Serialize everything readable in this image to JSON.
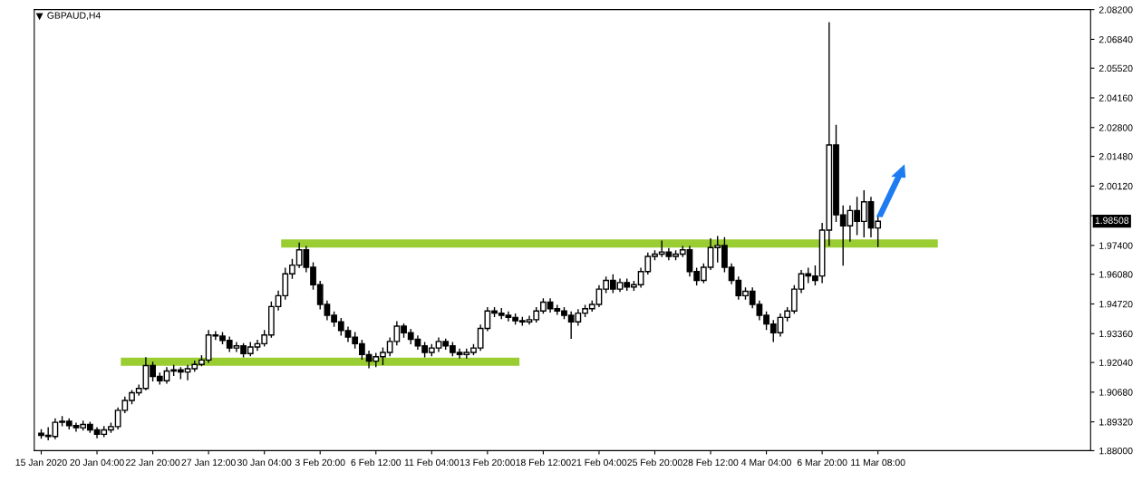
{
  "chart_data": {
    "type": "candlestick",
    "title": "GBPAUD,H4",
    "categories": [
      "15 Jan 2020",
      null,
      null,
      null,
      null,
      null,
      null,
      null,
      "20 Jan 04:00",
      null,
      null,
      null,
      null,
      null,
      null,
      null,
      "22 Jan 20:00",
      null,
      null,
      null,
      null,
      null,
      null,
      null,
      "27 Jan 12:00",
      null,
      null,
      null,
      null,
      null,
      null,
      null,
      "30 Jan 04:00",
      null,
      null,
      null,
      null,
      null,
      null,
      null,
      "3 Feb 20:00",
      null,
      null,
      null,
      null,
      null,
      null,
      null,
      "6 Feb 12:00",
      null,
      null,
      null,
      null,
      null,
      null,
      null,
      "11 Feb 04:00",
      null,
      null,
      null,
      null,
      null,
      null,
      null,
      "13 Feb 20:00",
      null,
      null,
      null,
      null,
      null,
      null,
      null,
      "18 Feb 12:00",
      null,
      null,
      null,
      null,
      null,
      null,
      null,
      "21 Feb 04:00",
      null,
      null,
      null,
      null,
      null,
      null,
      null,
      "25 Feb 20:00",
      null,
      null,
      null,
      null,
      null,
      null,
      null,
      "28 Feb 12:00",
      null,
      null,
      null,
      null,
      null,
      null,
      null,
      "4 Mar 04:00",
      null,
      null,
      null,
      null,
      null,
      null,
      null,
      "6 Mar 20:00",
      null,
      null,
      null,
      null,
      null,
      null,
      null,
      "11 Mar 08:00",
      null,
      null,
      null,
      null,
      null,
      null,
      null,
      null,
      null,
      null,
      null,
      null,
      null,
      null,
      null,
      null,
      null,
      null,
      null,
      null,
      null,
      null,
      null,
      null,
      null,
      null,
      null,
      null,
      null,
      null
    ],
    "ohlc": [
      [
        1.888,
        1.8895,
        1.8858,
        1.887
      ],
      [
        1.887,
        1.8905,
        1.885,
        1.8865
      ],
      [
        1.8865,
        1.8945,
        1.8855,
        1.893
      ],
      [
        1.893,
        1.8955,
        1.8915,
        1.8935
      ],
      [
        1.8935,
        1.8945,
        1.89,
        1.8915
      ],
      [
        1.8915,
        1.8925,
        1.889,
        1.8905
      ],
      [
        1.8905,
        1.8935,
        1.8895,
        1.892
      ],
      [
        1.892,
        1.893,
        1.8885,
        1.8895
      ],
      [
        1.8895,
        1.8905,
        1.886,
        1.8875
      ],
      [
        1.8875,
        1.891,
        1.8865,
        1.8895
      ],
      [
        1.8895,
        1.8925,
        1.8885,
        1.891
      ],
      [
        1.891,
        1.8995,
        1.89,
        1.8985
      ],
      [
        1.8985,
        1.9045,
        1.8975,
        1.903
      ],
      [
        1.903,
        1.9075,
        1.9015,
        1.9065
      ],
      [
        1.9065,
        1.91,
        1.9055,
        1.9085
      ],
      [
        1.9085,
        1.9225,
        1.908,
        1.919
      ],
      [
        1.919,
        1.9205,
        1.912,
        1.914
      ],
      [
        1.914,
        1.9155,
        1.9105,
        1.912
      ],
      [
        1.912,
        1.918,
        1.911,
        1.9165
      ],
      [
        1.9165,
        1.919,
        1.9145,
        1.917
      ],
      [
        1.917,
        1.918,
        1.913,
        1.916
      ],
      [
        1.916,
        1.919,
        1.9125,
        1.9175
      ],
      [
        1.9175,
        1.921,
        1.9165,
        1.9195
      ],
      [
        1.9195,
        1.9235,
        1.919,
        1.9215
      ],
      [
        1.9215,
        1.935,
        1.9205,
        1.933
      ],
      [
        1.933,
        1.9345,
        1.931,
        1.9325
      ],
      [
        1.9325,
        1.934,
        1.929,
        1.9305
      ],
      [
        1.9305,
        1.932,
        1.9255,
        1.927
      ],
      [
        1.927,
        1.9295,
        1.9255,
        1.928
      ],
      [
        1.928,
        1.929,
        1.923,
        1.9245
      ],
      [
        1.9245,
        1.9295,
        1.9235,
        1.9275
      ],
      [
        1.9275,
        1.9305,
        1.926,
        1.929
      ],
      [
        1.929,
        1.935,
        1.928,
        1.933
      ],
      [
        1.933,
        1.948,
        1.932,
        1.946
      ],
      [
        1.946,
        1.953,
        1.9445,
        1.951
      ],
      [
        1.951,
        1.9635,
        1.9495,
        1.961
      ],
      [
        1.961,
        1.9675,
        1.959,
        1.965
      ],
      [
        1.965,
        1.975,
        1.964,
        1.972
      ],
      [
        1.972,
        1.9735,
        1.962,
        1.964
      ],
      [
        1.964,
        1.966,
        1.954,
        1.956
      ],
      [
        1.956,
        1.9575,
        1.945,
        1.947
      ],
      [
        1.947,
        1.9485,
        1.94,
        1.942
      ],
      [
        1.942,
        1.9435,
        1.937,
        1.939
      ],
      [
        1.939,
        1.9405,
        1.933,
        1.935
      ],
      [
        1.935,
        1.9365,
        1.93,
        1.932
      ],
      [
        1.932,
        1.934,
        1.927,
        1.929
      ],
      [
        1.929,
        1.9305,
        1.922,
        1.924
      ],
      [
        1.924,
        1.9255,
        1.918,
        1.921
      ],
      [
        1.921,
        1.9245,
        1.9185,
        1.923
      ],
      [
        1.923,
        1.927,
        1.9195,
        1.925
      ],
      [
        1.925,
        1.9315,
        1.9235,
        1.93
      ],
      [
        1.93,
        1.939,
        1.9285,
        1.937
      ],
      [
        1.937,
        1.938,
        1.932,
        1.934
      ],
      [
        1.934,
        1.9355,
        1.929,
        1.931
      ],
      [
        1.931,
        1.9325,
        1.9265,
        1.928
      ],
      [
        1.928,
        1.9295,
        1.923,
        1.925
      ],
      [
        1.925,
        1.9285,
        1.9235,
        1.927
      ],
      [
        1.927,
        1.9315,
        1.9255,
        1.93
      ],
      [
        1.93,
        1.931,
        1.9265,
        1.928
      ],
      [
        1.928,
        1.9295,
        1.9235,
        1.925
      ],
      [
        1.925,
        1.9265,
        1.9225,
        1.924
      ],
      [
        1.924,
        1.9265,
        1.9225,
        1.925
      ],
      [
        1.925,
        1.9285,
        1.924,
        1.927
      ],
      [
        1.927,
        1.9375,
        1.926,
        1.936
      ],
      [
        1.936,
        1.9455,
        1.935,
        1.944
      ],
      [
        1.944,
        1.9455,
        1.9415,
        1.943
      ],
      [
        1.943,
        1.945,
        1.9405,
        1.942
      ],
      [
        1.942,
        1.9435,
        1.9395,
        1.941
      ],
      [
        1.941,
        1.9425,
        1.938,
        1.9395
      ],
      [
        1.9395,
        1.941,
        1.9375,
        1.939
      ],
      [
        1.939,
        1.9415,
        1.938,
        1.94
      ],
      [
        1.94,
        1.9455,
        1.939,
        1.944
      ],
      [
        1.944,
        1.9495,
        1.943,
        1.948
      ],
      [
        1.948,
        1.9495,
        1.9435,
        1.945
      ],
      [
        1.945,
        1.9465,
        1.9425,
        1.944
      ],
      [
        1.944,
        1.9455,
        1.9405,
        1.942
      ],
      [
        1.942,
        1.9435,
        1.9315,
        1.939
      ],
      [
        1.939,
        1.9445,
        1.9375,
        1.943
      ],
      [
        1.943,
        1.9465,
        1.9415,
        1.945
      ],
      [
        1.945,
        1.9485,
        1.944,
        1.947
      ],
      [
        1.947,
        1.9555,
        1.946,
        1.954
      ],
      [
        1.954,
        1.9595,
        1.9525,
        1.958
      ],
      [
        1.958,
        1.9605,
        1.9525,
        1.954
      ],
      [
        1.954,
        1.9585,
        1.953,
        1.957
      ],
      [
        1.957,
        1.9585,
        1.9535,
        1.955
      ],
      [
        1.955,
        1.9575,
        1.9535,
        1.956
      ],
      [
        1.956,
        1.9635,
        1.955,
        1.962
      ],
      [
        1.962,
        1.9705,
        1.961,
        1.969
      ],
      [
        1.969,
        1.9715,
        1.9675,
        1.97
      ],
      [
        1.97,
        1.976,
        1.969,
        1.971
      ],
      [
        1.971,
        1.9725,
        1.9675,
        1.969
      ],
      [
        1.969,
        1.9715,
        1.9675,
        1.97
      ],
      [
        1.97,
        1.9735,
        1.969,
        1.972
      ],
      [
        1.972,
        1.9735,
        1.96,
        1.962
      ],
      [
        1.962,
        1.9635,
        1.956,
        1.958
      ],
      [
        1.958,
        1.9655,
        1.957,
        1.964
      ],
      [
        1.964,
        1.977,
        1.963,
        1.973
      ],
      [
        1.973,
        1.978,
        1.9665,
        1.974
      ],
      [
        1.974,
        1.9775,
        1.962,
        1.964
      ],
      [
        1.964,
        1.9655,
        1.9565,
        1.958
      ],
      [
        1.958,
        1.9595,
        1.9495,
        1.951
      ],
      [
        1.951,
        1.9545,
        1.9495,
        1.953
      ],
      [
        1.953,
        1.9545,
        1.9455,
        1.947
      ],
      [
        1.947,
        1.9485,
        1.94,
        1.942
      ],
      [
        1.942,
        1.9435,
        1.9355,
        1.938
      ],
      [
        1.938,
        1.9395,
        1.93,
        1.934
      ],
      [
        1.934,
        1.9425,
        1.9325,
        1.941
      ],
      [
        1.941,
        1.9455,
        1.9395,
        1.944
      ],
      [
        1.944,
        1.9555,
        1.943,
        1.954
      ],
      [
        1.954,
        1.9625,
        1.9525,
        1.961
      ],
      [
        1.961,
        1.9635,
        1.957,
        1.96
      ],
      [
        1.96,
        1.9645,
        1.956,
        1.958
      ],
      [
        1.96,
        1.984,
        1.957,
        1.981
      ],
      [
        1.981,
        2.076,
        1.974,
        2.02
      ],
      [
        2.02,
        2.029,
        1.985,
        1.988
      ],
      [
        1.988,
        1.992,
        1.965,
        1.983
      ],
      [
        1.983,
        1.992,
        1.976,
        1.99
      ],
      [
        1.99,
        1.996,
        1.979,
        1.985
      ],
      [
        1.985,
        1.999,
        1.978,
        1.994
      ],
      [
        1.994,
        1.996,
        1.978,
        1.982
      ],
      [
        1.982,
        1.988,
        1.9735,
        1.98508
      ],
      null,
      null,
      null,
      null,
      null,
      null,
      null,
      null,
      null,
      null,
      null,
      null,
      null,
      null,
      null,
      null,
      null,
      null,
      null,
      null,
      null,
      null,
      null,
      null,
      null,
      null,
      null,
      null,
      null,
      null
    ],
    "series": [
      {
        "type": "line",
        "color": "#9acd32",
        "values": [
          null,
          null,
          null,
          null,
          null,
          null,
          null,
          null,
          null,
          null,
          null,
          null,
          1.9207,
          1.9207,
          1.9207,
          1.9207,
          1.9207,
          1.9207,
          1.9207,
          1.9207,
          1.9207,
          1.9207,
          1.9207,
          1.9207,
          1.9207,
          1.9207,
          1.9207,
          1.9207,
          1.9207,
          1.9207,
          1.9207,
          1.9207,
          1.9207,
          1.9207,
          1.9207,
          1.9207,
          1.9207,
          1.9207,
          1.9207,
          1.9207,
          1.9207,
          1.9207,
          1.9207,
          1.9207,
          1.9207,
          1.9207,
          1.9207,
          1.9207,
          1.9207,
          1.9207,
          1.9207,
          1.9207,
          1.9207,
          1.9207,
          1.9207,
          1.9207,
          1.9207,
          1.9207,
          1.9207,
          1.9207,
          1.9207,
          1.9207,
          1.9207,
          1.9207,
          1.9207,
          1.9207,
          1.9207,
          1.9207,
          1.9207,
          null,
          null,
          null,
          null,
          null,
          null,
          null,
          null,
          null,
          null,
          null,
          null,
          null,
          null,
          null,
          null,
          null,
          null,
          null,
          null,
          null,
          null,
          null,
          null,
          null,
          null,
          null,
          null,
          null,
          null,
          null,
          null,
          null,
          null,
          null,
          null,
          null,
          null,
          null,
          null,
          null,
          null,
          null,
          null,
          null,
          null,
          null,
          null,
          null,
          null,
          null,
          null,
          null,
          null,
          null,
          null,
          null,
          null,
          null,
          null,
          null,
          null,
          null,
          null,
          null,
          null,
          null,
          null,
          null,
          null,
          null,
          null,
          null,
          null,
          null,
          null,
          null,
          null,
          null,
          null,
          null,
          null
        ]
      },
      {
        "type": "line",
        "color": "#9acd32",
        "values": [
          null,
          null,
          null,
          null,
          null,
          null,
          null,
          null,
          null,
          null,
          null,
          null,
          null,
          null,
          null,
          null,
          null,
          null,
          null,
          null,
          null,
          null,
          null,
          null,
          null,
          null,
          null,
          null,
          null,
          null,
          null,
          null,
          null,
          null,
          null,
          1.9749,
          1.9749,
          1.9749,
          1.9749,
          1.9749,
          1.9749,
          1.9749,
          1.9749,
          1.9749,
          1.9749,
          1.9749,
          1.9749,
          1.9749,
          1.9749,
          1.9749,
          1.9749,
          1.9749,
          1.9749,
          1.9749,
          1.9749,
          1.9749,
          1.9749,
          1.9749,
          1.9749,
          1.9749,
          1.9749,
          1.9749,
          1.9749,
          1.9749,
          1.9749,
          1.9749,
          1.9749,
          1.9749,
          1.9749,
          1.9749,
          1.9749,
          1.9749,
          1.9749,
          1.9749,
          1.9749,
          1.9749,
          1.9749,
          1.9749,
          1.9749,
          1.9749,
          1.9749,
          1.9749,
          1.9749,
          1.9749,
          1.9749,
          1.9749,
          1.9749,
          1.9749,
          1.9749,
          1.9749,
          1.9749,
          1.9749,
          1.9749,
          1.9749,
          1.9749,
          1.9749,
          1.9749,
          1.9749,
          1.9749,
          1.9749,
          1.9749,
          1.9749,
          1.9749,
          1.9749,
          1.9749,
          1.9749,
          1.9749,
          1.9749,
          1.9749,
          1.9749,
          1.9749,
          1.9749,
          1.9749,
          1.9749,
          1.9749,
          1.9749,
          1.9749,
          1.9749,
          1.9749,
          1.9749,
          1.9749,
          1.9749,
          1.9749,
          1.9749,
          1.9749,
          1.9749,
          1.9749,
          1.9749,
          1.9749,
          null,
          null,
          null,
          null,
          null,
          null,
          null,
          null,
          null,
          null,
          null,
          null,
          null,
          null,
          null,
          null,
          null,
          null,
          null,
          null,
          null,
          null
        ]
      }
    ],
    "annotations": [
      "1.98508"
    ],
    "ylim": [
      1.88,
      2.082
    ],
    "yticks": [
      {
        "value": 1.88,
        "label": "1.88000"
      },
      {
        "value": 1.8932,
        "label": "1.89320"
      },
      {
        "value": 1.9068,
        "label": "1.90680"
      },
      {
        "value": 1.9204,
        "label": "1.92040"
      },
      {
        "value": 1.9336,
        "label": "1.93360"
      },
      {
        "value": 1.9472,
        "label": "1.94720"
      },
      {
        "value": 1.9608,
        "label": "1.96080"
      },
      {
        "value": 1.974,
        "label": "1.97400"
      },
      {
        "value": 1.9876,
        "label": null
      },
      {
        "value": 2.0012,
        "label": "2.00120"
      },
      {
        "value": 2.0148,
        "label": "2.01480"
      },
      {
        "value": 2.028,
        "label": "2.02800"
      },
      {
        "value": 2.0416,
        "label": "2.04160"
      },
      {
        "value": 2.0552,
        "label": "2.05520"
      },
      {
        "value": 2.0684,
        "label": "2.06840"
      },
      {
        "value": 2.082,
        "label": "2.08200"
      }
    ],
    "grid": false,
    "legend": false
  }
}
